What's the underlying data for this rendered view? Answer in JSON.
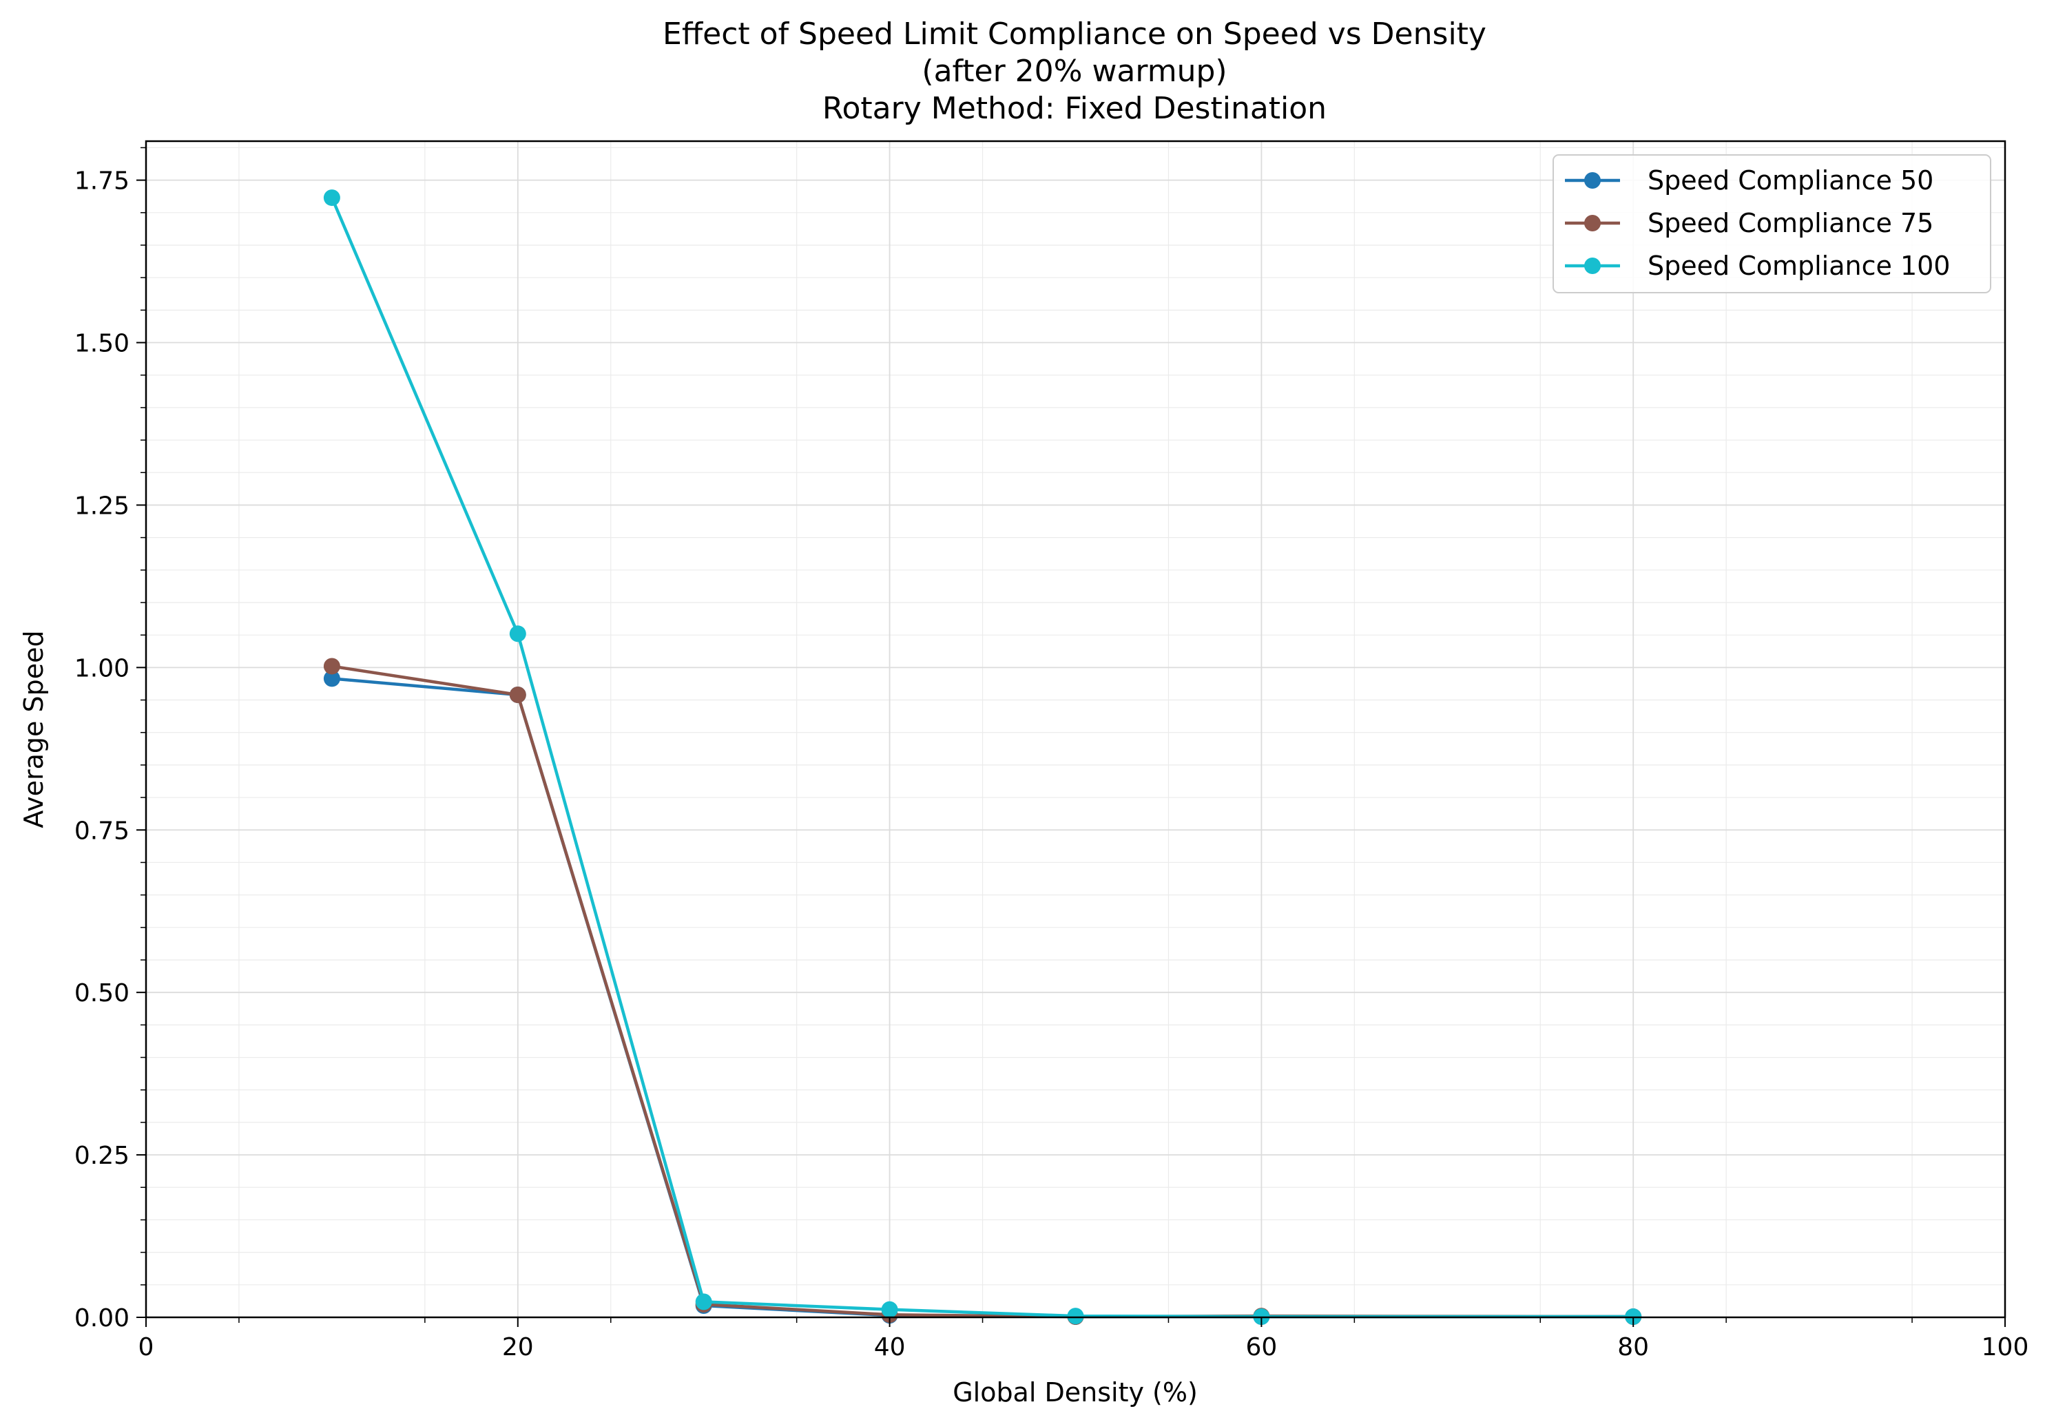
{
  "chart_data": {
    "type": "line",
    "title": [
      "Effect of Speed Limit Compliance on Speed vs Density",
      "(after 20% warmup)",
      "Rotary Method: Fixed Destination"
    ],
    "xlabel": "Global Density (%)",
    "ylabel": "Average Speed",
    "xlim": [
      0,
      100
    ],
    "ylim": [
      0,
      1.81
    ],
    "xticks": [
      0,
      20,
      40,
      60,
      80,
      100
    ],
    "xtick_labels": [
      "0",
      "20",
      "40",
      "60",
      "80",
      "100"
    ],
    "yticks": [
      0,
      0.25,
      0.5,
      0.75,
      1.0,
      1.25,
      1.5,
      1.75
    ],
    "ytick_labels": [
      "0.00",
      "0.25",
      "0.50",
      "0.75",
      "1.00",
      "1.25",
      "1.50",
      "1.75"
    ],
    "grid": true,
    "minor_grid": true,
    "legend_position": "top-right",
    "series": [
      {
        "name": "Speed Compliance 50",
        "color": "#1f77b4",
        "points": [
          [
            10,
            0.983
          ],
          [
            20,
            0.958
          ],
          [
            30,
            0.018
          ],
          [
            40,
            0.003
          ],
          [
            50,
            0.001
          ],
          [
            60,
            0.001
          ],
          [
            80,
            0.001
          ]
        ]
      },
      {
        "name": "Speed Compliance 75",
        "color": "#8c564b",
        "points": [
          [
            10,
            1.002
          ],
          [
            20,
            0.958
          ],
          [
            30,
            0.02
          ],
          [
            40,
            0.004
          ],
          [
            50,
            0.001
          ],
          [
            60,
            0.002
          ],
          [
            80,
            0.001
          ]
        ]
      },
      {
        "name": "Speed Compliance 100",
        "color": "#17becf",
        "points": [
          [
            10,
            1.723
          ],
          [
            20,
            1.052
          ],
          [
            30,
            0.024
          ],
          [
            40,
            0.012
          ],
          [
            50,
            0.002
          ],
          [
            60,
            0.001
          ],
          [
            80,
            0.001
          ]
        ]
      }
    ]
  }
}
